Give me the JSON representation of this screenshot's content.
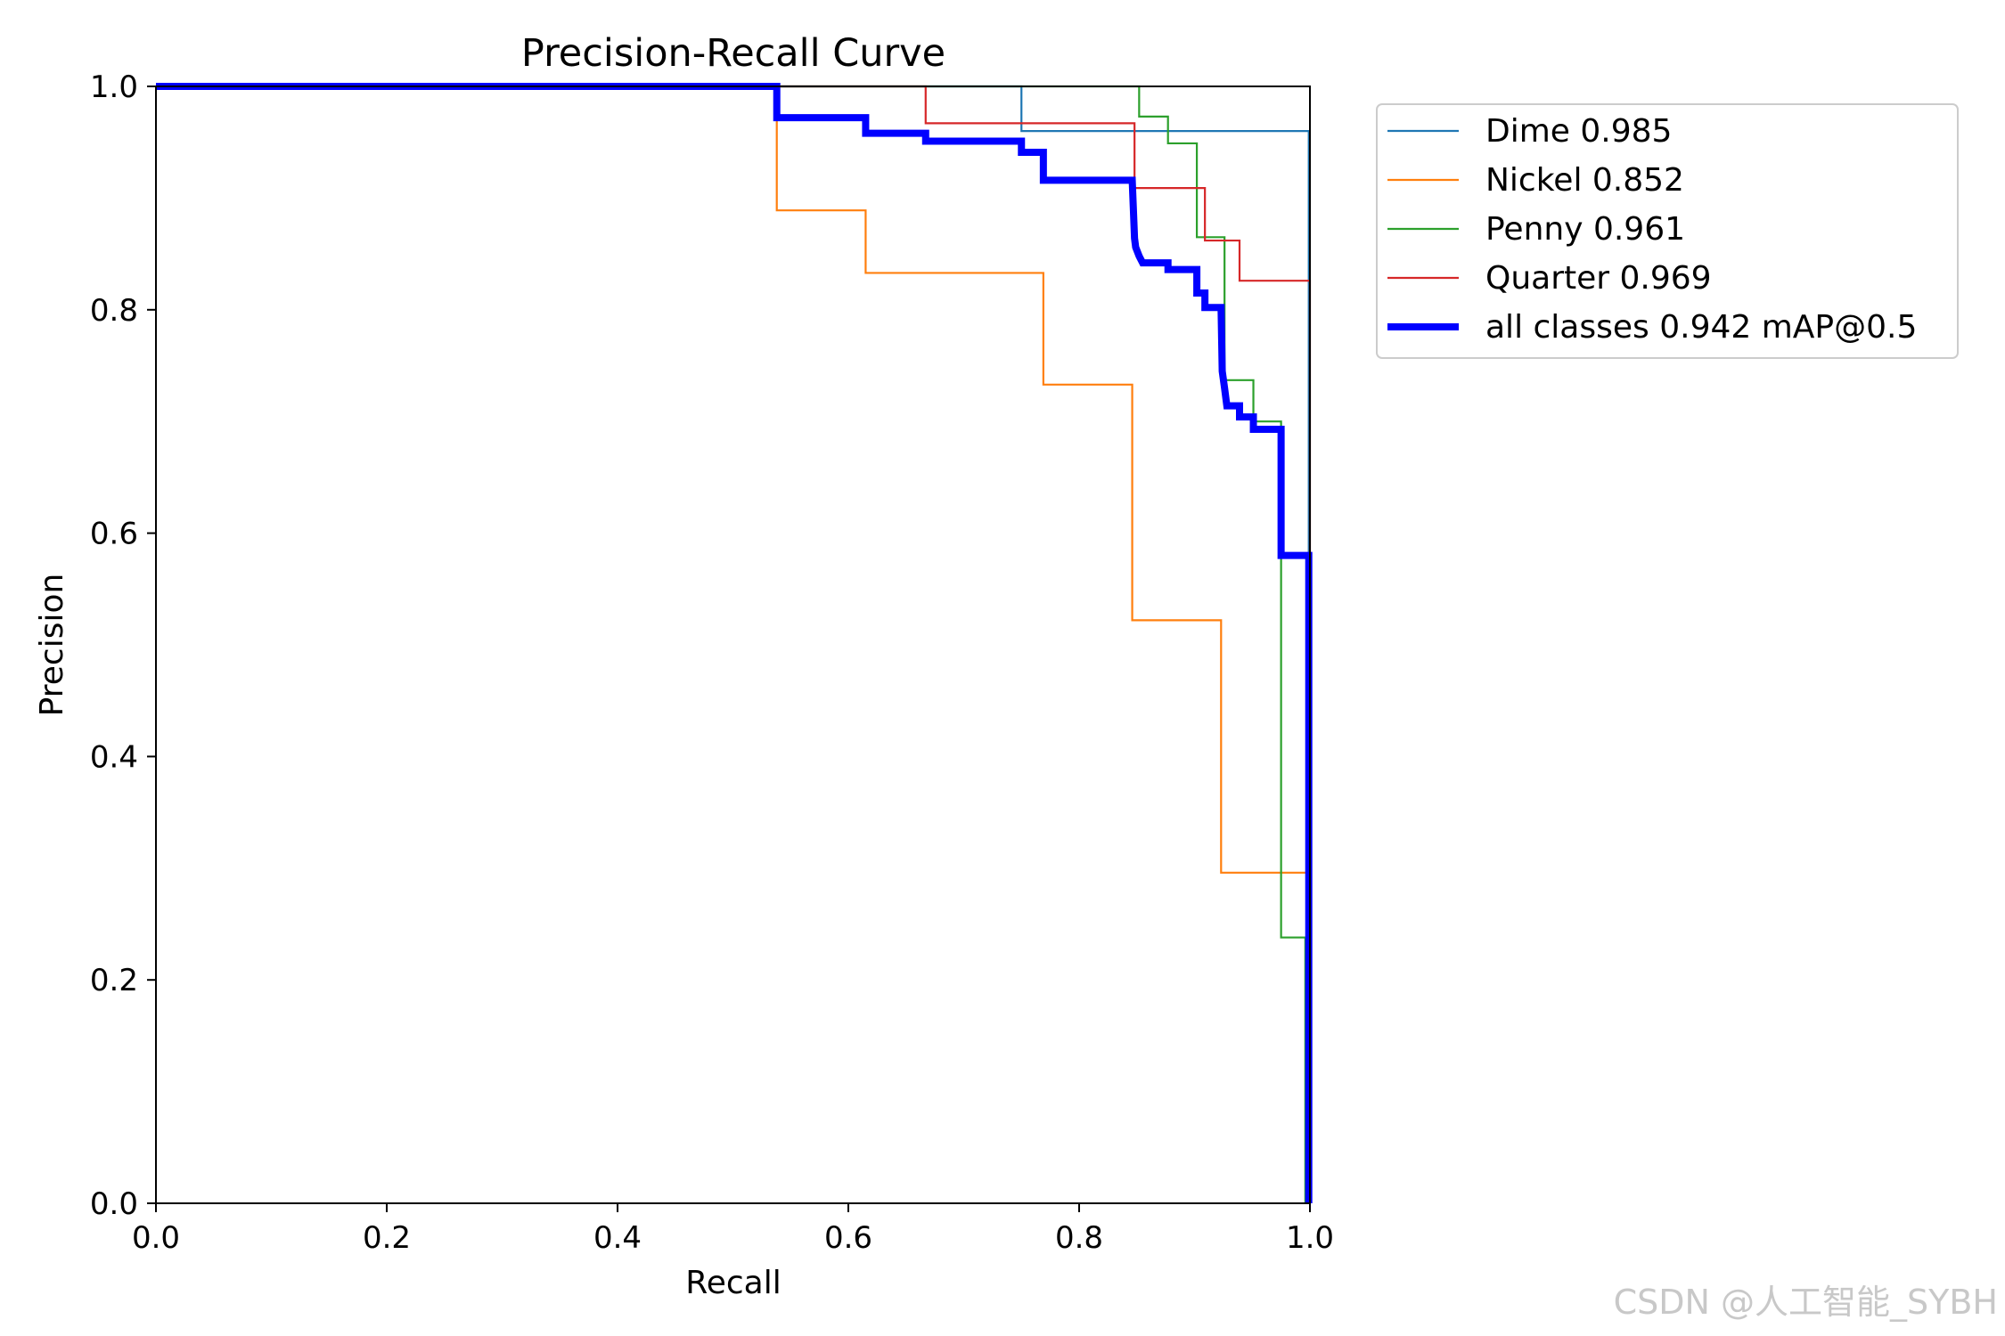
{
  "chart_data": {
    "type": "line",
    "title": "Precision-Recall Curve",
    "xlabel": "Recall",
    "ylabel": "Precision",
    "xlim": [
      0,
      1
    ],
    "ylim": [
      0,
      1
    ],
    "xticks": [
      "0.0",
      "0.2",
      "0.4",
      "0.6",
      "0.8",
      "1.0"
    ],
    "yticks": [
      "0.0",
      "0.2",
      "0.4",
      "0.6",
      "0.8",
      "1.0"
    ],
    "grid": false,
    "legend_position": "outside-top-right",
    "series": [
      {
        "name": "Dime 0.985",
        "color": "#1f77b4",
        "width": "thin",
        "x": [
          0,
          0.75,
          0.75,
          0.999,
          0.999
        ],
        "y": [
          1.0,
          1.0,
          0.96,
          0.96,
          0.0
        ]
      },
      {
        "name": "Nickel 0.852",
        "color": "#ff7f0e",
        "width": "thin",
        "x": [
          0,
          0.538,
          0.538,
          0.615,
          0.615,
          0.769,
          0.769,
          0.846,
          0.846,
          0.923,
          0.923,
          0.998,
          0.998
        ],
        "y": [
          1.0,
          1.0,
          0.889,
          0.889,
          0.833,
          0.833,
          0.733,
          0.733,
          0.522,
          0.522,
          0.296,
          0.296,
          0.0
        ]
      },
      {
        "name": "Penny 0.961",
        "color": "#2ca02c",
        "width": "thin",
        "x": [
          0,
          0.852,
          0.852,
          0.877,
          0.877,
          0.902,
          0.902,
          0.926,
          0.926,
          0.951,
          0.951,
          0.975,
          0.975,
          0.996,
          0.996
        ],
        "y": [
          1.0,
          1.0,
          0.973,
          0.973,
          0.949,
          0.949,
          0.865,
          0.865,
          0.737,
          0.737,
          0.7,
          0.7,
          0.238,
          0.238,
          0.0
        ]
      },
      {
        "name": "Quarter 0.969",
        "color": "#d62728",
        "width": "thin",
        "x": [
          0,
          0.667,
          0.667,
          0.848,
          0.848,
          0.909,
          0.909,
          0.939,
          0.939,
          1.0,
          1.0
        ],
        "y": [
          1.0,
          1.0,
          0.967,
          0.967,
          0.909,
          0.909,
          0.862,
          0.862,
          0.826,
          0.826,
          0.0
        ]
      },
      {
        "name": "all classes 0.942 mAP@0.5",
        "color": "#0000ff",
        "width": "thick",
        "x": [
          0,
          0.538,
          0.538,
          0.615,
          0.615,
          0.667,
          0.667,
          0.75,
          0.75,
          0.769,
          0.769,
          0.846,
          0.848,
          0.849,
          0.852,
          0.855,
          0.877,
          0.877,
          0.902,
          0.902,
          0.909,
          0.909,
          0.923,
          0.924,
          0.926,
          0.928,
          0.939,
          0.939,
          0.951,
          0.951,
          0.975,
          0.975,
          0.996,
          0.996,
          0.999,
          0.999
        ],
        "y": [
          1.0,
          1.0,
          0.972,
          0.972,
          0.958,
          0.958,
          0.951,
          0.951,
          0.941,
          0.941,
          0.916,
          0.916,
          0.864,
          0.856,
          0.848,
          0.842,
          0.842,
          0.836,
          0.836,
          0.815,
          0.815,
          0.802,
          0.802,
          0.745,
          0.73,
          0.714,
          0.714,
          0.704,
          0.704,
          0.693,
          0.693,
          0.58,
          0.58,
          0.58,
          0.58,
          0.0
        ]
      }
    ]
  },
  "watermark": "CSDN @人工智能_SYBH"
}
